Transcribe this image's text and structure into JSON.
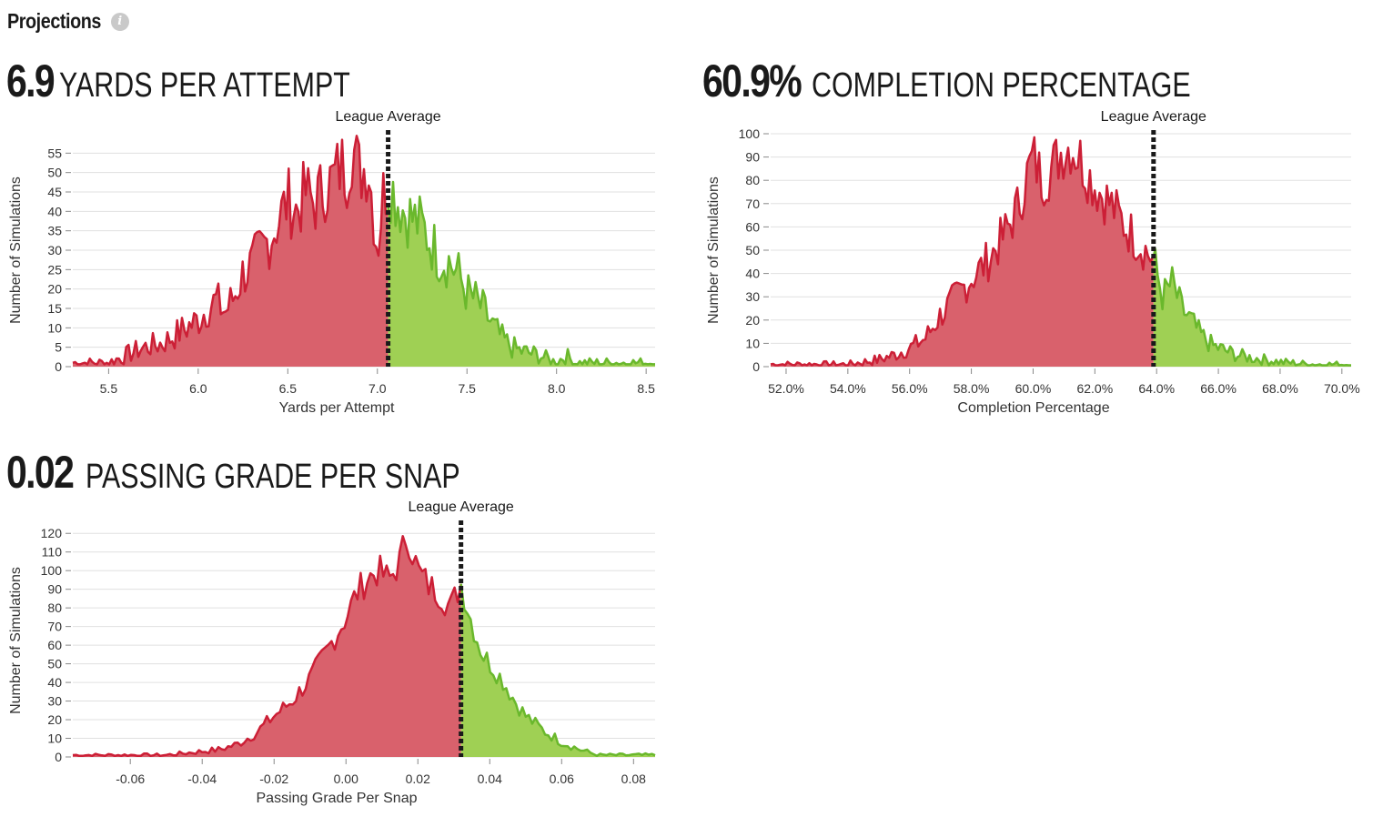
{
  "header": {
    "title": "Projections",
    "info_icon": "info-icon"
  },
  "colors": {
    "below": "#cc1f36",
    "below_fill": "#d9616c",
    "above": "#6ab82c",
    "above_fill": "#9fd054",
    "avg_line": "#1a1a1a",
    "grid": "#e0e0e0"
  },
  "charts": [
    {
      "id": "ypa",
      "stat_value": "6.9",
      "stat_label": "YARDS PER ATTEMPT",
      "avg_label": "League Average",
      "chart_data": {
        "type": "area",
        "xlabel": "Yards per Attempt",
        "ylabel": "Number of Simulations",
        "xlim": [
          5.3,
          8.55
        ],
        "ylim": [
          0,
          60
        ],
        "xticks": [
          5.5,
          6.0,
          6.5,
          7.0,
          7.5,
          8.0,
          8.5
        ],
        "xtick_labels": [
          "5.5",
          "6.0",
          "6.5",
          "7.0",
          "7.5",
          "8.0",
          "8.5"
        ],
        "yticks": [
          0,
          5,
          10,
          15,
          20,
          25,
          30,
          35,
          40,
          45,
          50,
          55
        ],
        "league_average": 7.06,
        "x": [
          5.3,
          5.5,
          5.6,
          5.7,
          5.8,
          5.9,
          6.0,
          6.05,
          6.1,
          6.15,
          6.2,
          6.25,
          6.3,
          6.35,
          6.4,
          6.45,
          6.5,
          6.55,
          6.6,
          6.65,
          6.7,
          6.75,
          6.8,
          6.83,
          6.86,
          6.9,
          6.95,
          7.0,
          7.03,
          7.06,
          7.1,
          7.15,
          7.2,
          7.25,
          7.3,
          7.35,
          7.4,
          7.45,
          7.5,
          7.55,
          7.6,
          7.65,
          7.7,
          7.75,
          7.8,
          7.9,
          8.0,
          8.05,
          8.1,
          8.2,
          8.3,
          8.55
        ],
        "y": [
          1,
          1,
          3,
          5,
          6,
          9,
          12,
          15,
          17,
          14,
          18,
          24,
          26,
          30,
          33,
          38,
          43,
          40,
          45,
          42,
          46,
          48,
          52,
          50,
          57,
          50,
          52,
          30,
          44,
          48,
          44,
          40,
          38,
          36,
          32,
          28,
          27,
          24,
          19,
          17,
          14,
          10,
          7,
          5,
          4,
          3,
          1,
          3,
          1,
          1,
          1,
          1
        ]
      }
    },
    {
      "id": "cmp",
      "stat_value": "60.9%",
      "stat_label": "COMPLETION PERCENTAGE",
      "avg_label": "League Average",
      "chart_data": {
        "type": "area",
        "xlabel": "Completion Percentage",
        "ylabel": "Number of Simulations",
        "xlim": [
          51.5,
          70.3
        ],
        "ylim": [
          0,
          100
        ],
        "xticks": [
          52,
          54,
          56,
          58,
          60,
          62,
          64,
          66,
          68,
          70
        ],
        "xtick_labels": [
          "52.0%",
          "54.0%",
          "56.0%",
          "58.0%",
          "60.0%",
          "62.0%",
          "64.0%",
          "66.0%",
          "68.0%",
          "70.0%"
        ],
        "yticks": [
          0,
          10,
          20,
          30,
          40,
          50,
          60,
          70,
          80,
          90,
          100
        ],
        "league_average": 63.9,
        "x": [
          51.5,
          53.0,
          54.0,
          54.5,
          55.0,
          55.5,
          56.0,
          56.5,
          57.0,
          57.5,
          58.0,
          58.5,
          59.0,
          59.5,
          59.8,
          60.0,
          60.3,
          60.6,
          60.9,
          61.2,
          61.5,
          61.8,
          62.1,
          62.5,
          63.0,
          63.5,
          63.9,
          64.2,
          64.5,
          64.8,
          65.1,
          65.4,
          65.8,
          66.2,
          66.6,
          67.0,
          67.5,
          68.0,
          69.0,
          70.3
        ],
        "y": [
          1,
          1,
          1,
          2,
          3,
          5,
          8,
          12,
          22,
          30,
          38,
          45,
          55,
          68,
          82,
          90,
          80,
          85,
          92,
          95,
          90,
          82,
          76,
          70,
          60,
          52,
          46,
          30,
          36,
          25,
          20,
          14,
          9,
          7,
          5,
          4,
          3,
          2,
          1,
          1
        ]
      }
    },
    {
      "id": "pgs",
      "stat_value": "0.02",
      "stat_label": "PASSING GRADE PER SNAP",
      "avg_label": "League Average",
      "chart_data": {
        "type": "area",
        "xlabel": "Passing Grade Per Snap",
        "ylabel": "Number of Simulations",
        "xlim": [
          -0.076,
          0.086
        ],
        "ylim": [
          0,
          125
        ],
        "xticks": [
          -0.06,
          -0.04,
          -0.02,
          0.0,
          0.02,
          0.04,
          0.06,
          0.08
        ],
        "xtick_labels": [
          "-0.06",
          "-0.04",
          "-0.02",
          "0.00",
          "0.02",
          "0.04",
          "0.06",
          "0.08"
        ],
        "yticks": [
          0,
          10,
          20,
          30,
          40,
          50,
          60,
          70,
          80,
          90,
          100,
          110,
          120
        ],
        "league_average": 0.032,
        "x": [
          -0.076,
          -0.06,
          -0.05,
          -0.045,
          -0.04,
          -0.035,
          -0.03,
          -0.025,
          -0.02,
          -0.015,
          -0.01,
          -0.005,
          0.0,
          0.003,
          0.006,
          0.009,
          0.012,
          0.015,
          0.017,
          0.02,
          0.023,
          0.026,
          0.029,
          0.032,
          0.035,
          0.038,
          0.041,
          0.044,
          0.047,
          0.05,
          0.055,
          0.06,
          0.065,
          0.07,
          0.086
        ],
        "y": [
          1,
          1,
          1,
          2,
          3,
          4,
          7,
          13,
          22,
          30,
          42,
          58,
          75,
          88,
          96,
          100,
          95,
          105,
          120,
          100,
          92,
          88,
          80,
          93,
          72,
          55,
          48,
          40,
          30,
          22,
          14,
          8,
          4,
          1,
          1
        ]
      }
    }
  ]
}
